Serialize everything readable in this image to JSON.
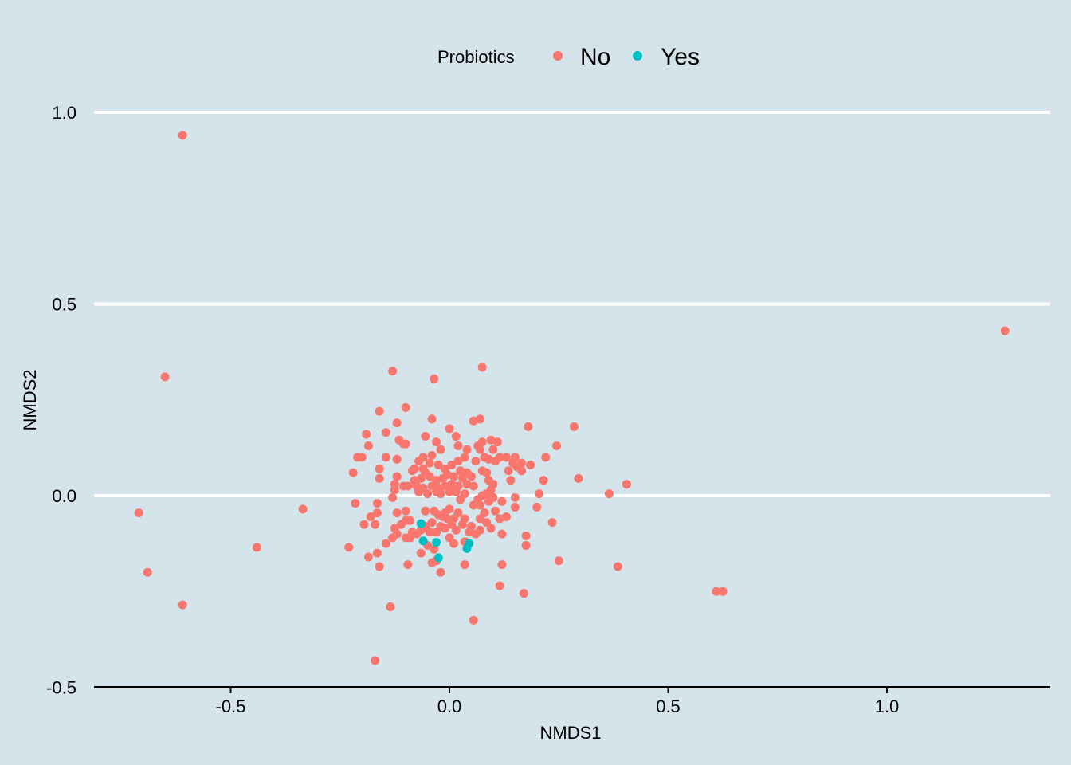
{
  "chart_data": {
    "type": "scatter",
    "xlabel": "NMDS1",
    "ylabel": "NMDS2",
    "xlim": [
      -0.82,
      1.38
    ],
    "ylim": [
      -0.5,
      1.15
    ],
    "x_ticks": [
      "-0.5",
      "0.0",
      "0.5",
      "1.0"
    ],
    "x_tick_values": [
      -0.5,
      0.0,
      0.5,
      1.0
    ],
    "y_ticks": [
      "-0.5",
      "0.0",
      "0.5",
      "1.0"
    ],
    "y_tick_values": [
      -0.5,
      0.0,
      0.5,
      1.0
    ],
    "grid": "horizontal major lines",
    "legend": {
      "title": "Probiotics",
      "placement": "top",
      "entries": [
        "No",
        "Yes"
      ]
    },
    "colors": {
      "No": "#f8766d",
      "Yes": "#00bfc4",
      "background": "#d5e4eb",
      "grid": "#ffffff"
    },
    "series": [
      {
        "name": "No",
        "color": "#f8766d",
        "points": [
          [
            -0.61,
            0.94
          ],
          [
            1.27,
            0.43
          ],
          [
            -0.65,
            0.31
          ],
          [
            -0.71,
            -0.045
          ],
          [
            -0.69,
            -0.2
          ],
          [
            -0.61,
            -0.285
          ],
          [
            -0.44,
            -0.135
          ],
          [
            -0.335,
            -0.035
          ],
          [
            0.61,
            -0.25
          ],
          [
            0.625,
            -0.25
          ],
          [
            0.385,
            -0.185
          ],
          [
            0.405,
            0.03
          ],
          [
            0.365,
            0.005
          ],
          [
            0.295,
            0.045
          ],
          [
            0.285,
            0.18
          ],
          [
            0.245,
            0.13
          ],
          [
            0.22,
            0.1
          ],
          [
            0.215,
            0.04
          ],
          [
            0.235,
            -0.07
          ],
          [
            0.2,
            -0.03
          ],
          [
            0.205,
            0.005
          ],
          [
            0.25,
            -0.17
          ],
          [
            0.17,
            -0.255
          ],
          [
            0.175,
            -0.105
          ],
          [
            0.175,
            -0.13
          ],
          [
            0.185,
            0.08
          ],
          [
            0.18,
            0.18
          ],
          [
            0.115,
            -0.235
          ],
          [
            0.12,
            -0.18
          ],
          [
            0.055,
            -0.325
          ],
          [
            0.075,
            0.335
          ],
          [
            0.07,
            0.2
          ],
          [
            0.055,
            0.195
          ],
          [
            0.13,
            0.1
          ],
          [
            0.15,
            0.1
          ],
          [
            0.165,
            0.085
          ],
          [
            0.145,
            0.085
          ],
          [
            0.165,
            0.065
          ],
          [
            0.155,
            0.075
          ],
          [
            0.14,
            0.04
          ],
          [
            0.135,
            0.065
          ],
          [
            0.15,
            -0.005
          ],
          [
            0.15,
            -0.03
          ],
          [
            0.13,
            -0.055
          ],
          [
            0.12,
            -0.015
          ],
          [
            0.12,
            -0.1
          ],
          [
            0.115,
            -0.06
          ],
          [
            0.105,
            -0.04
          ],
          [
            0.095,
            0.145
          ],
          [
            0.11,
            0.14
          ],
          [
            0.1,
            0.12
          ],
          [
            0.115,
            0.1
          ],
          [
            0.105,
            0.09
          ],
          [
            0.09,
            0.095
          ],
          [
            0.075,
            0.14
          ],
          [
            0.065,
            0.13
          ],
          [
            0.07,
            0.12
          ],
          [
            0.08,
            0.1
          ],
          [
            0.06,
            0.09
          ],
          [
            0.085,
            0.06
          ],
          [
            0.075,
            0.065
          ],
          [
            0.09,
            0.04
          ],
          [
            0.1,
            0.03
          ],
          [
            0.095,
            0.015
          ],
          [
            0.085,
            0.005
          ],
          [
            0.1,
            -0.005
          ],
          [
            0.075,
            0.0
          ],
          [
            0.065,
            -0.01
          ],
          [
            0.09,
            -0.015
          ],
          [
            0.07,
            -0.025
          ],
          [
            0.055,
            -0.025
          ],
          [
            0.08,
            -0.045
          ],
          [
            0.07,
            -0.06
          ],
          [
            0.085,
            -0.07
          ],
          [
            0.095,
            -0.085
          ],
          [
            0.07,
            -0.09
          ],
          [
            0.06,
            -0.1
          ],
          [
            0.05,
            -0.08
          ],
          [
            0.045,
            -0.095
          ],
          [
            0.035,
            -0.06
          ],
          [
            0.03,
            -0.075
          ],
          [
            0.02,
            -0.045
          ],
          [
            0.01,
            -0.06
          ],
          [
            0.015,
            -0.09
          ],
          [
            0.035,
            -0.12
          ],
          [
            0.035,
            -0.18
          ],
          [
            0.0,
            -0.11
          ],
          [
            0.01,
            -0.125
          ],
          [
            -0.02,
            -0.2
          ],
          [
            -0.04,
            -0.175
          ],
          [
            -0.03,
            -0.17
          ],
          [
            -0.05,
            -0.13
          ],
          [
            -0.035,
            -0.14
          ],
          [
            -0.065,
            -0.15
          ],
          [
            -0.075,
            -0.1
          ],
          [
            -0.09,
            -0.11
          ],
          [
            -0.085,
            -0.095
          ],
          [
            -0.1,
            -0.11
          ],
          [
            -0.11,
            -0.075
          ],
          [
            -0.09,
            -0.065
          ],
          [
            -0.1,
            -0.065
          ],
          [
            -0.12,
            -0.1
          ],
          [
            -0.125,
            -0.085
          ],
          [
            -0.13,
            -0.11
          ],
          [
            -0.145,
            -0.125
          ],
          [
            -0.12,
            -0.045
          ],
          [
            -0.1,
            -0.04
          ],
          [
            -0.095,
            -0.18
          ],
          [
            -0.165,
            -0.15
          ],
          [
            -0.16,
            -0.185
          ],
          [
            -0.185,
            -0.16
          ],
          [
            -0.23,
            -0.135
          ],
          [
            -0.17,
            -0.075
          ],
          [
            -0.165,
            -0.045
          ],
          [
            -0.165,
            -0.02
          ],
          [
            -0.195,
            -0.075
          ],
          [
            -0.215,
            -0.02
          ],
          [
            -0.18,
            -0.055
          ],
          [
            -0.135,
            -0.29
          ],
          [
            -0.17,
            -0.43
          ],
          [
            -0.13,
            0.325
          ],
          [
            -0.035,
            0.305
          ],
          [
            -0.1,
            0.23
          ],
          [
            -0.16,
            0.22
          ],
          [
            -0.04,
            0.2
          ],
          [
            -0.12,
            0.19
          ],
          [
            -0.145,
            0.165
          ],
          [
            -0.19,
            0.16
          ],
          [
            -0.185,
            0.13
          ],
          [
            -0.2,
            0.1
          ],
          [
            -0.21,
            0.1
          ],
          [
            -0.22,
            0.06
          ],
          [
            -0.16,
            0.07
          ],
          [
            -0.16,
            0.045
          ],
          [
            -0.145,
            0.1
          ],
          [
            -0.12,
            0.095
          ],
          [
            -0.115,
            0.145
          ],
          [
            -0.105,
            0.135
          ],
          [
            -0.1,
            0.135
          ],
          [
            -0.055,
            0.155
          ],
          [
            -0.03,
            0.14
          ],
          [
            -0.02,
            0.12
          ],
          [
            -0.04,
            0.105
          ],
          [
            -0.06,
            0.1
          ],
          [
            -0.07,
            0.09
          ],
          [
            -0.08,
            0.07
          ],
          [
            -0.06,
            0.07
          ],
          [
            -0.045,
            0.085
          ],
          [
            -0.025,
            0.08
          ],
          [
            -0.01,
            0.07
          ],
          [
            0.0,
            0.175
          ],
          [
            0.015,
            0.155
          ],
          [
            0.02,
            0.13
          ],
          [
            0.035,
            0.1
          ],
          [
            0.04,
            0.12
          ],
          [
            0.02,
            0.09
          ],
          [
            0.005,
            0.08
          ],
          [
            0.025,
            0.065
          ],
          [
            0.04,
            0.06
          ],
          [
            0.05,
            0.05
          ],
          [
            0.03,
            0.045
          ],
          [
            0.01,
            0.05
          ],
          [
            -0.005,
            0.055
          ],
          [
            -0.015,
            0.045
          ],
          [
            -0.03,
            0.04
          ],
          [
            -0.045,
            0.05
          ],
          [
            -0.055,
            0.06
          ],
          [
            -0.065,
            0.045
          ],
          [
            -0.08,
            0.04
          ],
          [
            -0.095,
            0.025
          ],
          [
            -0.075,
            0.025
          ],
          [
            -0.06,
            0.02
          ],
          [
            -0.04,
            0.025
          ],
          [
            -0.025,
            0.02
          ],
          [
            -0.01,
            0.025
          ],
          [
            0.005,
            0.03
          ],
          [
            0.02,
            0.025
          ],
          [
            0.04,
            0.03
          ],
          [
            0.055,
            0.025
          ],
          [
            0.015,
            0.01
          ],
          [
            0.0,
            0.01
          ],
          [
            -0.02,
            0.005
          ],
          [
            -0.03,
            0.01
          ],
          [
            -0.05,
            0.005
          ],
          [
            -0.07,
            0.01
          ],
          [
            -0.12,
            0.05
          ],
          [
            -0.125,
            0.03
          ],
          [
            -0.105,
            0.025
          ],
          [
            -0.13,
            -0.005
          ],
          [
            -0.125,
            0.015
          ],
          [
            -0.055,
            -0.04
          ],
          [
            -0.035,
            -0.04
          ],
          [
            -0.025,
            -0.05
          ],
          [
            -0.015,
            -0.055
          ],
          [
            -0.005,
            -0.06
          ],
          [
            -0.02,
            -0.08
          ],
          [
            -0.04,
            -0.07
          ],
          [
            -0.055,
            -0.08
          ],
          [
            -0.065,
            -0.09
          ],
          [
            -0.045,
            -0.095
          ],
          [
            -0.03,
            -0.095
          ],
          [
            -0.01,
            -0.085
          ],
          [
            0.005,
            -0.075
          ],
          [
            -0.01,
            -0.045
          ],
          [
            0.025,
            -0.01
          ],
          [
            0.035,
            0.005
          ],
          [
            -0.085,
            0.065
          ],
          [
            0.0,
            -0.035
          ]
        ]
      },
      {
        "name": "Yes",
        "color": "#00bfc4",
        "points": [
          [
            -0.065,
            -0.073
          ],
          [
            -0.06,
            -0.118
          ],
          [
            -0.03,
            -0.122
          ],
          [
            -0.025,
            -0.162
          ],
          [
            0.04,
            -0.138
          ],
          [
            0.045,
            -0.125
          ]
        ]
      }
    ]
  }
}
